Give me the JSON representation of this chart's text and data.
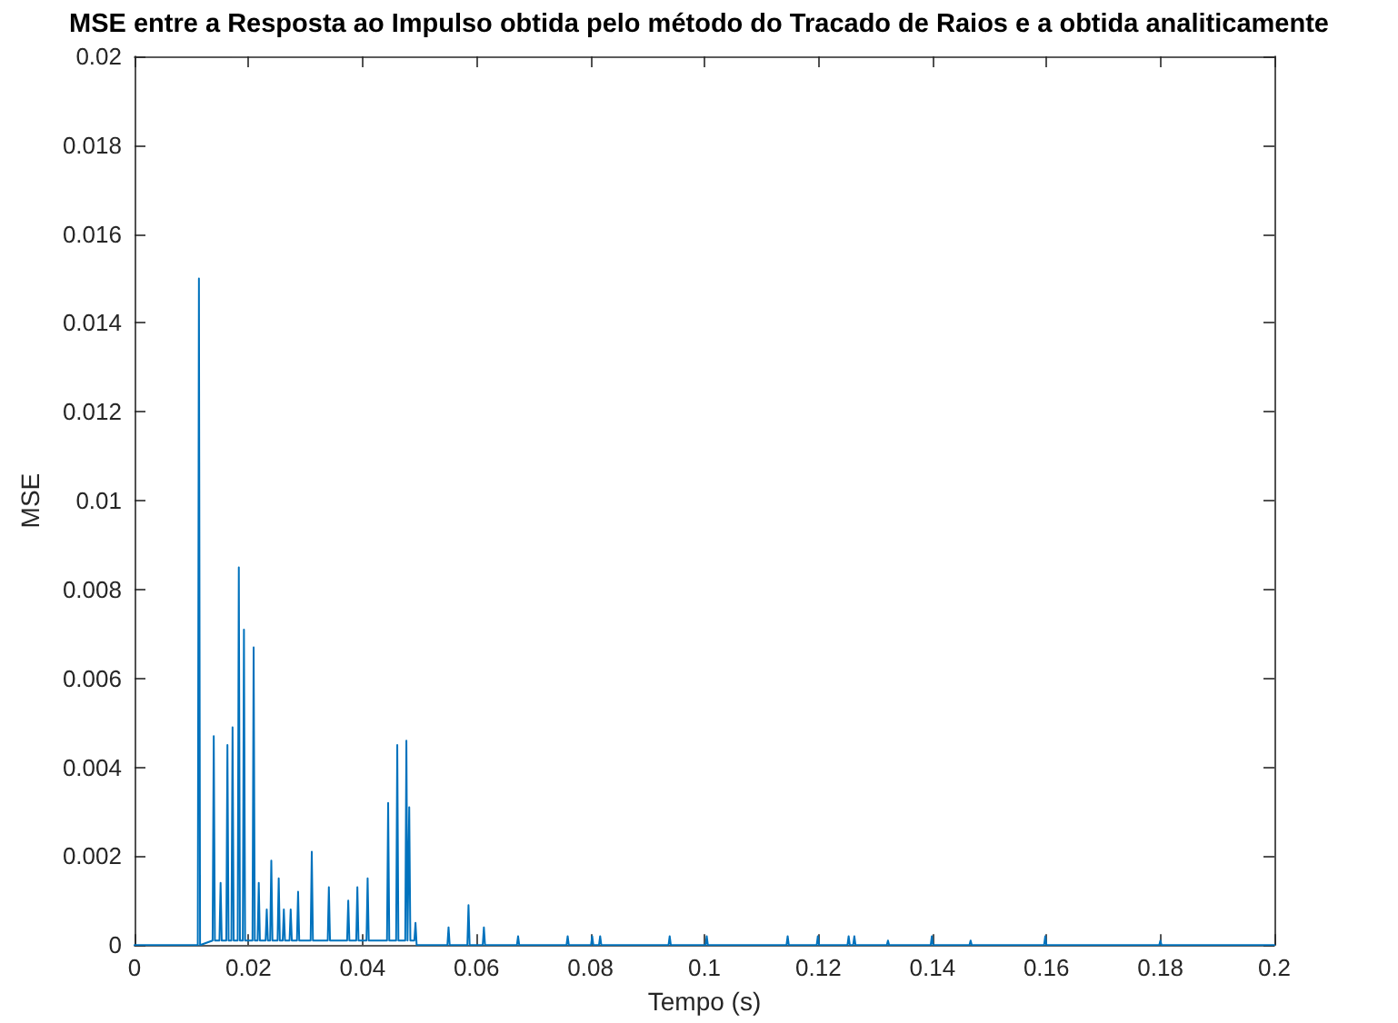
{
  "chart_data": {
    "type": "line",
    "title": "MSE entre a Resposta ao Impulso obtida pelo método do Tracado de Raios e a obtida analiticamente",
    "xlabel": "Tempo (s)",
    "ylabel": "MSE",
    "x": [
      0,
      0.0111,
      0.0113,
      0.0115,
      0.0137,
      0.0139,
      0.0141,
      0.0149,
      0.0151,
      0.0153,
      0.0161,
      0.0163,
      0.0165,
      0.017,
      0.0172,
      0.0174,
      0.0181,
      0.0183,
      0.0185,
      0.019,
      0.0192,
      0.0194,
      0.0207,
      0.0209,
      0.0211,
      0.0216,
      0.0218,
      0.022,
      0.023,
      0.0232,
      0.0234,
      0.0238,
      0.024,
      0.0242,
      0.0251,
      0.0253,
      0.0255,
      0.026,
      0.0262,
      0.0264,
      0.0272,
      0.0274,
      0.0276,
      0.0285,
      0.0287,
      0.0289,
      0.0309,
      0.0311,
      0.0313,
      0.0339,
      0.0341,
      0.0343,
      0.0373,
      0.0375,
      0.0377,
      0.0389,
      0.0391,
      0.0393,
      0.0407,
      0.0409,
      0.0411,
      0.0443,
      0.0445,
      0.0447,
      0.0459,
      0.0461,
      0.0463,
      0.0475,
      0.0477,
      0.0479,
      0.048,
      0.0482,
      0.0484,
      0.0491,
      0.0493,
      0.0495,
      0.0549,
      0.0551,
      0.0553,
      0.0584,
      0.0586,
      0.0588,
      0.0611,
      0.0613,
      0.0615,
      0.0671,
      0.0673,
      0.0675,
      0.0758,
      0.076,
      0.0762,
      0.0801,
      0.0803,
      0.0805,
      0.0815,
      0.0817,
      0.0819,
      0.0937,
      0.0939,
      0.0941,
      0.1002,
      0.1004,
      0.1006,
      0.1144,
      0.1146,
      0.1148,
      0.1197,
      0.1199,
      0.1201,
      0.1251,
      0.1253,
      0.1255,
      0.1261,
      0.1263,
      0.1265,
      0.132,
      0.1322,
      0.1324,
      0.1397,
      0.1399,
      0.1401,
      0.1465,
      0.1467,
      0.1469,
      0.1596,
      0.1598,
      0.16,
      0.1798,
      0.18,
      0.1802,
      0.2
    ],
    "series": [
      {
        "color": "#0072bd",
        "values": [
          0,
          0,
          0.015,
          0,
          0.0001,
          0.0047,
          0.0001,
          0.0001,
          0.0014,
          0.0001,
          0.0001,
          0.0045,
          0.0001,
          0.0001,
          0.0049,
          0.0001,
          0.0001,
          0.0085,
          0.0001,
          0.0001,
          0.0071,
          0.0001,
          0.0001,
          0.0067,
          0.0001,
          0.0001,
          0.0014,
          0.0001,
          0.0001,
          0.0008,
          0.0001,
          0.0001,
          0.0019,
          0.0001,
          0.0001,
          0.0015,
          0.0001,
          0.0001,
          0.0008,
          0.0001,
          0.0001,
          0.0008,
          0.0001,
          0.0001,
          0.0012,
          0.0001,
          0.0001,
          0.0021,
          0.0001,
          0.0001,
          0.0013,
          0.0001,
          0.0001,
          0.001,
          0.0001,
          0.0001,
          0.0013,
          0.0001,
          0.0001,
          0.0015,
          0.0001,
          0.0001,
          0.0032,
          0.0001,
          0.0001,
          0.0045,
          0.0001,
          0.0001,
          0.0046,
          0.0001,
          0.0001,
          0.0031,
          0.0001,
          0.0001,
          0.0005,
          0,
          0,
          0.0004,
          0,
          0,
          0.0009,
          0,
          0,
          0.0004,
          0,
          0,
          0.0002,
          0,
          0,
          0.0002,
          0,
          0,
          0.0002,
          0,
          0,
          0.0002,
          0,
          0,
          0.0002,
          0,
          0,
          0.0002,
          0,
          0,
          0.0002,
          0,
          0,
          0.0002,
          0,
          0,
          0.0002,
          0,
          0,
          0.0002,
          0,
          0,
          0.0001,
          0,
          0,
          0.0002,
          0,
          0,
          0.0001,
          0,
          0,
          0.0002,
          0,
          0,
          0.0001,
          0,
          0
        ]
      }
    ],
    "xlim": [
      0,
      0.2
    ],
    "xticks": [
      0,
      0.02,
      0.04,
      0.06,
      0.08,
      0.1,
      0.12,
      0.14,
      0.16,
      0.18,
      0.2
    ],
    "ylim": [
      0,
      0.02
    ],
    "yticks": [
      0,
      0.002,
      0.004,
      0.006,
      0.008,
      0.01,
      0.012,
      0.014,
      0.016,
      0.018,
      0.02
    ]
  }
}
